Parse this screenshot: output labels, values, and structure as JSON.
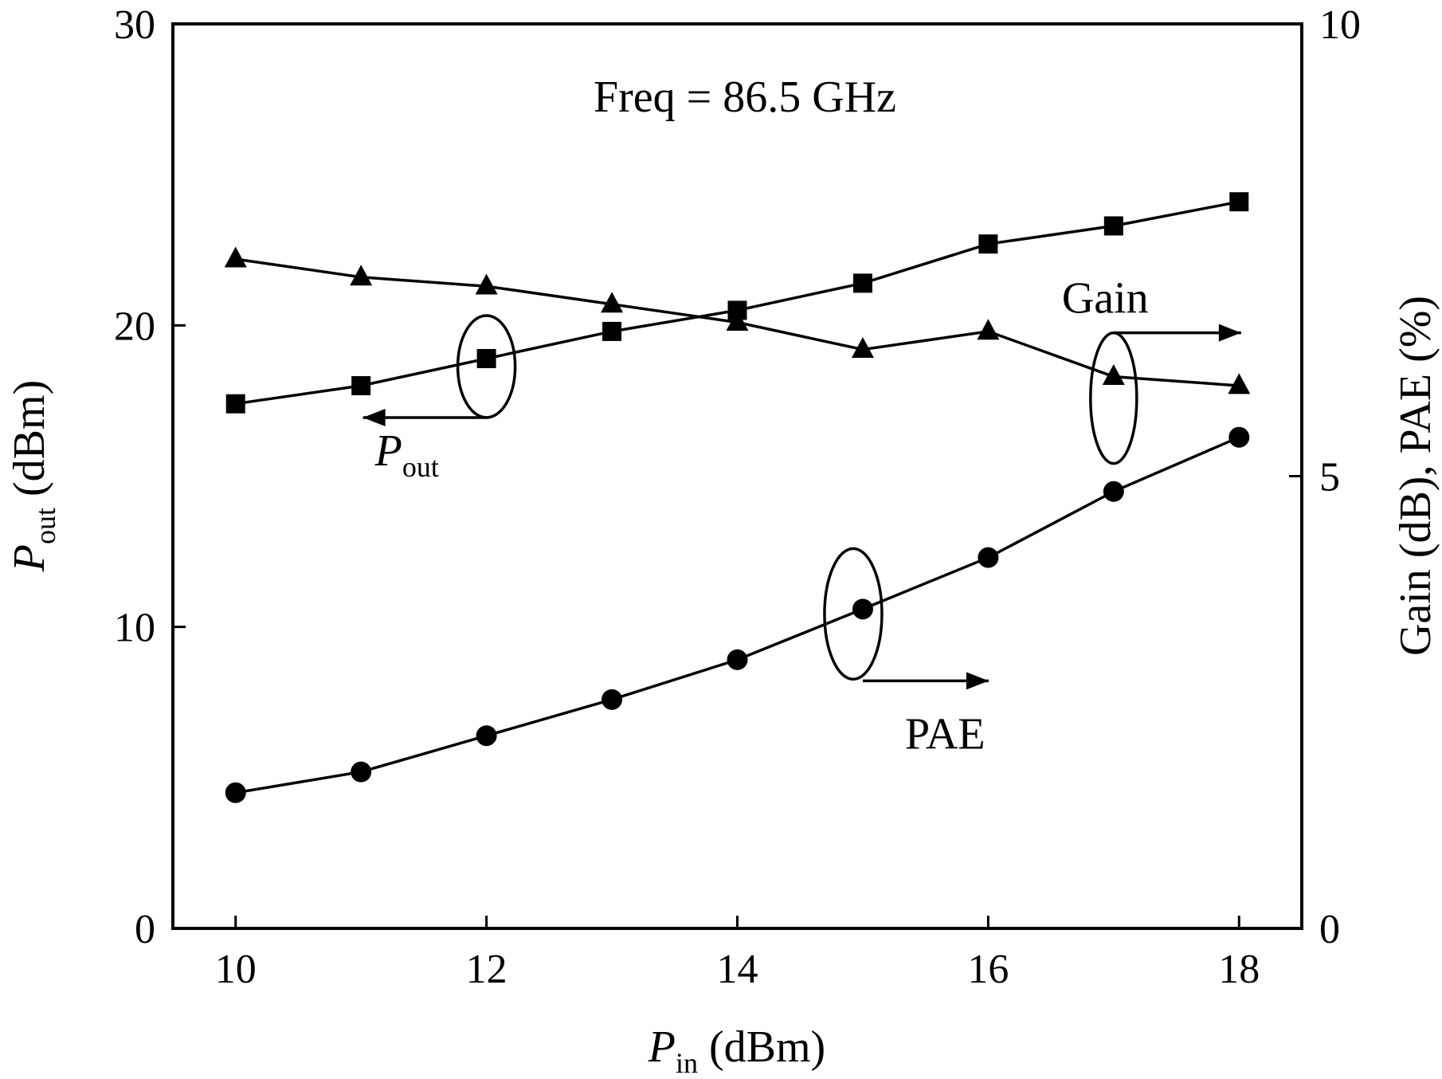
{
  "chart_data": {
    "type": "line",
    "annotation": "Freq = 86.5 GHz",
    "x": [
      10,
      11,
      12,
      13,
      14,
      15,
      16,
      17,
      18
    ],
    "xlim": [
      9.5,
      18.5
    ],
    "x_ticks": [
      "10",
      "12",
      "14",
      "16",
      "18"
    ],
    "xlabel": {
      "main": "P",
      "sub": "in",
      "unit": " (dBm)"
    },
    "y_left": {
      "label_main": "P",
      "label_sub": "out",
      "label_unit": " (dBm)",
      "lim": [
        0,
        30
      ],
      "ticks": [
        "0",
        "10",
        "20",
        "30"
      ]
    },
    "y_right": {
      "label": "Gain (dB),  PAE (%)",
      "lim": [
        0,
        10
      ],
      "ticks": [
        "0",
        "5",
        "10"
      ]
    },
    "series": [
      {
        "name": "Pout",
        "axis": "left",
        "marker": "square",
        "values": [
          17.4,
          18.0,
          18.9,
          19.8,
          20.5,
          21.4,
          22.7,
          23.3,
          24.1
        ]
      },
      {
        "name": "Gain",
        "axis": "right",
        "marker": "triangle",
        "values": [
          7.4,
          7.2,
          7.1,
          6.9,
          6.7,
          6.4,
          6.6,
          6.1,
          6.0
        ]
      },
      {
        "name": "PAE",
        "axis": "right",
        "marker": "circle",
        "values": [
          1.5,
          1.73,
          2.13,
          2.53,
          2.97,
          3.53,
          4.1,
          4.83,
          5.43
        ]
      }
    ],
    "callouts": {
      "pout": {
        "main": "P",
        "sub": "out"
      },
      "gain": "Gain",
      "pae": "PAE"
    },
    "grid": false,
    "legend": "none"
  }
}
